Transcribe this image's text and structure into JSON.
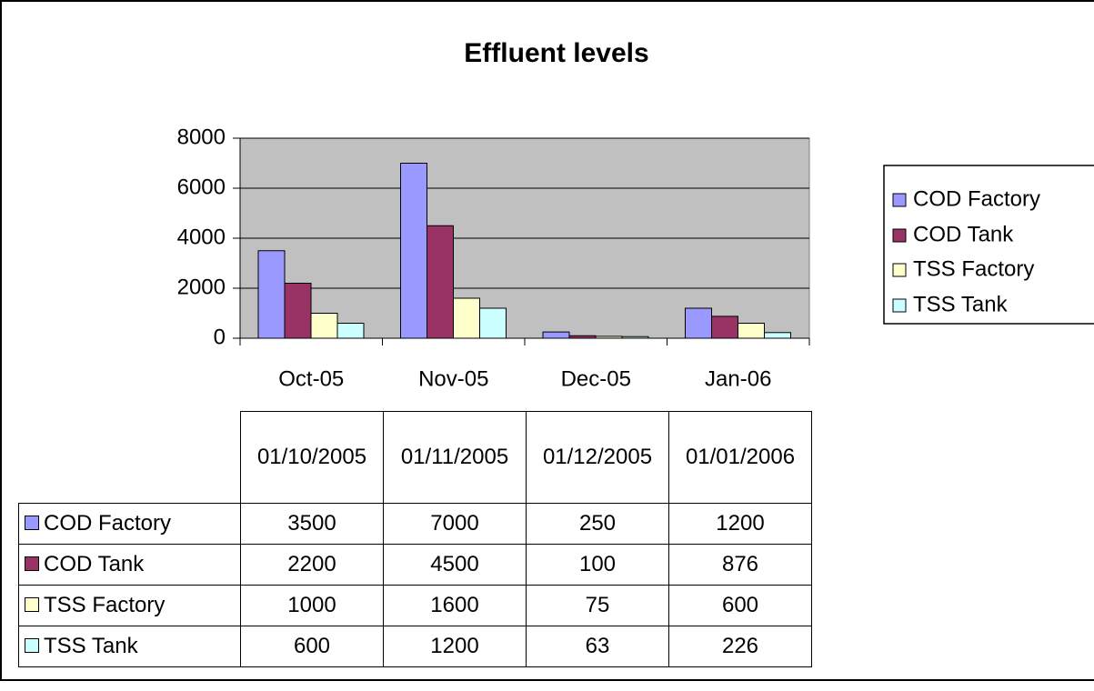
{
  "chart_data": {
    "type": "bar",
    "title": "Effluent levels",
    "categories": [
      "Oct-05",
      "Nov-05",
      "Dec-05",
      "Jan-06"
    ],
    "table_headers": [
      "01/10/2005",
      "01/11/2005",
      "01/12/2005",
      "01/01/2006"
    ],
    "series": [
      {
        "name": "COD Factory",
        "color": "#9999ff",
        "values": [
          3500,
          7000,
          250,
          1200
        ]
      },
      {
        "name": "COD Tank",
        "color": "#993366",
        "values": [
          2200,
          4500,
          100,
          876
        ]
      },
      {
        "name": "TSS Factory",
        "color": "#ffffcc",
        "values": [
          1000,
          1600,
          75,
          600
        ]
      },
      {
        "name": "TSS Tank",
        "color": "#ccffff",
        "values": [
          600,
          1200,
          63,
          226
        ]
      }
    ],
    "ylim": [
      0,
      8000
    ],
    "yticks": [
      0,
      2000,
      4000,
      6000,
      8000
    ],
    "grid": true,
    "legend": "right"
  }
}
